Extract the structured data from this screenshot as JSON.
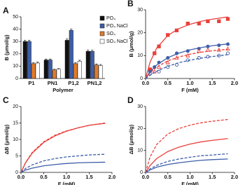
{
  "chart_data": [
    {
      "type": "bar",
      "label": "A",
      "ylabel": "B (μmol/g)",
      "xlabel": "Polymer",
      "categories": [
        "P1",
        "PN1",
        "P1,2",
        "PN1,2"
      ],
      "ylim": [
        0,
        50
      ],
      "yticks": [
        0,
        10,
        20,
        30,
        40,
        50
      ],
      "series": [
        {
          "name": "PO₄",
          "color": "#111111",
          "values": [
            30,
            15,
            31,
            22
          ],
          "errors": [
            1,
            0.8,
            1,
            1
          ]
        },
        {
          "name": "PO₄ NaCl",
          "color": "#3d5ea8",
          "values": [
            30,
            15,
            39,
            22
          ],
          "errors": [
            1,
            0.8,
            1,
            1
          ]
        },
        {
          "name": "SO₄",
          "color": "#e07b2a",
          "values": [
            12,
            7,
            12,
            11
          ],
          "errors": [
            0.8,
            0.6,
            0.8,
            0.8
          ]
        },
        {
          "name": "SO₄ NaCl",
          "color": "#ffffff",
          "values": [
            12.5,
            7.5,
            14,
            10.5
          ],
          "errors": [
            0.8,
            0.6,
            0.8,
            0.8
          ]
        }
      ]
    },
    {
      "type": "line",
      "label": "B",
      "ylabel": "B (μmol/g)",
      "xlabel": "F (mM)",
      "xlim": [
        0,
        2
      ],
      "xticks": [
        {
          "value": 0,
          "label": "0.0"
        },
        0.5,
        {
          "value": 1,
          "label": "1.0"
        },
        1.5,
        {
          "value": 2,
          "label": "2.0"
        }
      ],
      "ylim": [
        0,
        30
      ],
      "yticks": [
        0,
        10,
        20,
        30
      ],
      "series": [
        {
          "color": "#e8403a",
          "marker": "square",
          "filled": true,
          "x": [
            0.1,
            0.2,
            0.3,
            0.5,
            0.7,
            0.95,
            1.2,
            1.4,
            1.65,
            1.85
          ],
          "values": [
            4,
            11,
            14,
            19,
            21,
            24,
            24,
            25,
            25,
            26
          ]
        },
        {
          "color": "#3d5ea8",
          "marker": "circle",
          "filled": true,
          "x": [
            0.1,
            0.2,
            0.3,
            0.5,
            0.7,
            0.95,
            1.2,
            1.4,
            1.65,
            1.85
          ],
          "values": [
            3,
            5,
            7,
            9,
            11,
            12,
            13,
            14,
            14.5,
            15
          ]
        },
        {
          "color": "#e8403a",
          "marker": "triangle",
          "filled": false,
          "x": [
            0.2,
            0.3,
            0.5,
            0.7,
            0.95,
            1.2,
            1.4,
            1.65,
            1.85
          ],
          "values": [
            3,
            5,
            7,
            9,
            10,
            12,
            12.5,
            12.5,
            13
          ]
        },
        {
          "color": "#3d5ea8",
          "marker": "circle",
          "filled": false,
          "x": [
            0.1,
            0.3,
            0.5,
            0.7,
            0.95,
            1.2,
            1.4,
            1.65,
            1.85
          ],
          "values": [
            2,
            3,
            5,
            6,
            8,
            9,
            9.5,
            10,
            11
          ]
        },
        {
          "color": "#e8403a",
          "line": "solid",
          "x": [
            0,
            0.1,
            0.25,
            0.5,
            0.75,
            1,
            1.25,
            1.5,
            1.85
          ],
          "values": [
            0,
            7.1,
            13.3,
            18.8,
            21.8,
            23.7,
            25,
            25.9,
            26.9
          ]
        },
        {
          "color": "#3d5ea8",
          "line": "solid",
          "x": [
            0,
            0.1,
            0.25,
            0.5,
            0.75,
            1,
            1.25,
            1.5,
            1.85
          ],
          "values": [
            0,
            2.9,
            5.9,
            9.1,
            11.1,
            12.5,
            13.5,
            14.3,
            15.1
          ]
        },
        {
          "color": "#e8403a",
          "line": "dashed",
          "x": [
            0,
            0.1,
            0.25,
            0.5,
            0.75,
            1,
            1.25,
            1.5,
            1.85
          ],
          "values": [
            0,
            2.4,
            5,
            7.7,
            9.4,
            10.6,
            11.5,
            12.1,
            12.8
          ]
        },
        {
          "color": "#3d5ea8",
          "line": "dashed",
          "x": [
            0,
            0.1,
            0.25,
            0.5,
            0.75,
            1,
            1.25,
            1.5,
            1.85
          ],
          "values": [
            0,
            1.5,
            3.2,
            5.3,
            6.9,
            8,
            8.9,
            9.6,
            10.4
          ]
        }
      ]
    },
    {
      "type": "line",
      "label": "C",
      "ylabel": "ΔB (μmol/g)",
      "xlabel": "F (mM)",
      "xlim": [
        0,
        2
      ],
      "xticks": [
        {
          "value": 0,
          "label": "0.0"
        },
        0.5,
        {
          "value": 1,
          "label": "1.0"
        },
        1.5,
        {
          "value": 2,
          "label": "2.0"
        }
      ],
      "ylim": [
        0,
        20
      ],
      "yticks": [
        0,
        5,
        10,
        15,
        20
      ],
      "series": [
        {
          "color": "#e8403a",
          "line": "solid",
          "x": [
            0,
            0.1,
            0.25,
            0.5,
            0.75,
            1,
            1.25,
            1.5,
            1.85
          ],
          "values": [
            0,
            2.9,
            5.9,
            9.1,
            11.1,
            12.5,
            13.5,
            14.3,
            14.9
          ]
        },
        {
          "color": "#e8403a",
          "line": "dashed",
          "x": [
            0,
            0.1,
            0.25,
            0.5,
            0.75,
            1,
            1.25,
            1.5,
            1.85
          ],
          "values": [
            0,
            3,
            6.1,
            9.3,
            11.3,
            12.6,
            13.5,
            14.3,
            15
          ]
        },
        {
          "color": "#3d5ea8",
          "line": "dashed",
          "x": [
            0,
            0.1,
            0.25,
            0.5,
            0.75,
            1,
            1.25,
            1.5,
            1.85
          ],
          "values": [
            0,
            1.2,
            2.3,
            3.5,
            4.2,
            4.7,
            5,
            5.3,
            5.5
          ]
        },
        {
          "color": "#3d5ea8",
          "line": "solid",
          "x": [
            0,
            0.1,
            0.25,
            0.5,
            0.75,
            1,
            1.25,
            1.5,
            1.85
          ],
          "values": [
            0,
            0.7,
            1.3,
            2,
            2.4,
            2.7,
            2.9,
            3,
            3.1
          ]
        }
      ]
    },
    {
      "type": "line",
      "label": "D",
      "ylabel": "ΔB (μmol/g)",
      "xlabel": "F (mM)",
      "xlim": [
        0,
        2
      ],
      "xticks": [
        {
          "value": 0,
          "label": "0.0"
        },
        0.5,
        {
          "value": 1,
          "label": "1.0"
        },
        1.5,
        {
          "value": 2,
          "label": "2.0"
        }
      ],
      "ylim": [
        0,
        30
      ],
      "yticks": [
        0,
        10,
        20,
        30
      ],
      "series": [
        {
          "color": "#e8403a",
          "line": "dashed",
          "x": [
            0,
            0.1,
            0.25,
            0.5,
            0.75,
            1,
            1.25,
            1.5,
            1.85
          ],
          "values": [
            0,
            7,
            12.7,
            17.5,
            20,
            21.5,
            22.6,
            23.3,
            24.1
          ]
        },
        {
          "color": "#e8403a",
          "line": "solid",
          "x": [
            0,
            0.1,
            0.25,
            0.5,
            0.75,
            1,
            1.25,
            1.5,
            1.85
          ],
          "values": [
            0,
            3.1,
            6.3,
            9.5,
            11.5,
            12.9,
            13.9,
            14.6,
            15.4
          ]
        },
        {
          "color": "#3d5ea8",
          "line": "dashed",
          "x": [
            0,
            0.1,
            0.25,
            0.5,
            0.75,
            1,
            1.25,
            1.5,
            1.85
          ],
          "values": [
            0,
            1.6,
            3.2,
            5,
            6.1,
            6.9,
            7.6,
            7.9,
            8.5
          ]
        },
        {
          "color": "#3d5ea8",
          "line": "solid",
          "x": [
            0,
            0.1,
            0.25,
            0.5,
            0.75,
            1,
            1.25,
            1.5,
            1.85
          ],
          "values": [
            0,
            1.1,
            2.4,
            3.6,
            4.4,
            5,
            5.5,
            5.8,
            6.1
          ]
        }
      ]
    }
  ]
}
